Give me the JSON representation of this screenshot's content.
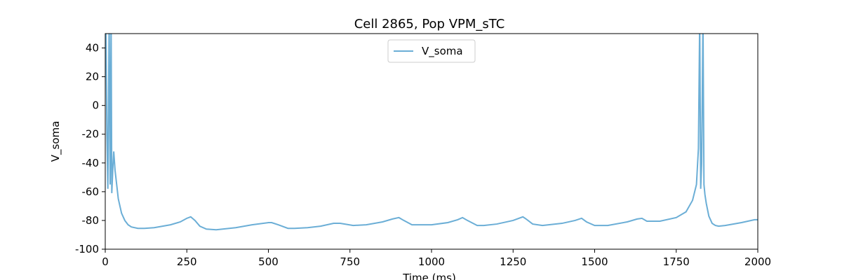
{
  "chart_data": {
    "type": "line",
    "title": "Cell 2865, Pop VPM_sTC",
    "x_label": "Time (ms)",
    "y_label": "V_soma",
    "x": [
      0,
      2,
      5,
      8,
      12,
      15,
      18,
      20,
      23,
      26,
      30,
      40,
      50,
      60,
      70,
      80,
      100,
      120,
      150,
      200,
      230,
      250,
      262,
      275,
      290,
      310,
      340,
      400,
      450,
      500,
      510,
      530,
      560,
      580,
      620,
      660,
      700,
      720,
      760,
      800,
      850,
      880,
      900,
      915,
      940,
      1000,
      1050,
      1080,
      1095,
      1110,
      1140,
      1160,
      1200,
      1250,
      1280,
      1290,
      1310,
      1340,
      1400,
      1440,
      1460,
      1475,
      1500,
      1540,
      1600,
      1630,
      1645,
      1660,
      1700,
      1750,
      1780,
      1800,
      1812,
      1818,
      1822,
      1825,
      1828,
      1832,
      1835,
      1838,
      1842,
      1850,
      1860,
      1870,
      1880,
      1900,
      1950,
      1990,
      2000
    ],
    "series": [
      {
        "name": "V_soma",
        "color": "#6baed6",
        "values": [
          30,
          60,
          -20,
          -58,
          60,
          -55,
          60,
          -61,
          -45,
          -32,
          -45,
          -65,
          -75,
          -80,
          -83,
          -84.5,
          -85.5,
          -85.5,
          -85,
          -83,
          -81,
          -78.5,
          -77.5,
          -80,
          -84,
          -86,
          -86.5,
          -85,
          -83,
          -81.5,
          -81.5,
          -83,
          -85.5,
          -85.5,
          -85,
          -84,
          -82,
          -82,
          -83.5,
          -83,
          -81,
          -79,
          -78,
          -80,
          -83,
          -83,
          -81.5,
          -79.5,
          -78,
          -80,
          -83.5,
          -83.5,
          -82.5,
          -80,
          -77.5,
          -79,
          -82.5,
          -83.5,
          -82,
          -80,
          -78.5,
          -81,
          -83.5,
          -83.5,
          -81,
          -79,
          -78.5,
          -80.5,
          -80.5,
          -78,
          -74,
          -66,
          -55,
          -30,
          60,
          -58,
          -40,
          60,
          -55,
          -62,
          -68,
          -77,
          -82,
          -83.5,
          -84,
          -83.5,
          -81.5,
          -79.5,
          -79.5
        ]
      }
    ],
    "xlim": [
      0,
      2000
    ],
    "xticks": [
      0,
      250,
      500,
      750,
      1000,
      1250,
      1500,
      1750,
      2000
    ],
    "ylim": [
      -100,
      50
    ],
    "yticks": [
      -100,
      -80,
      -60,
      -40,
      -20,
      0,
      20,
      40
    ],
    "legend": "upper center"
  }
}
